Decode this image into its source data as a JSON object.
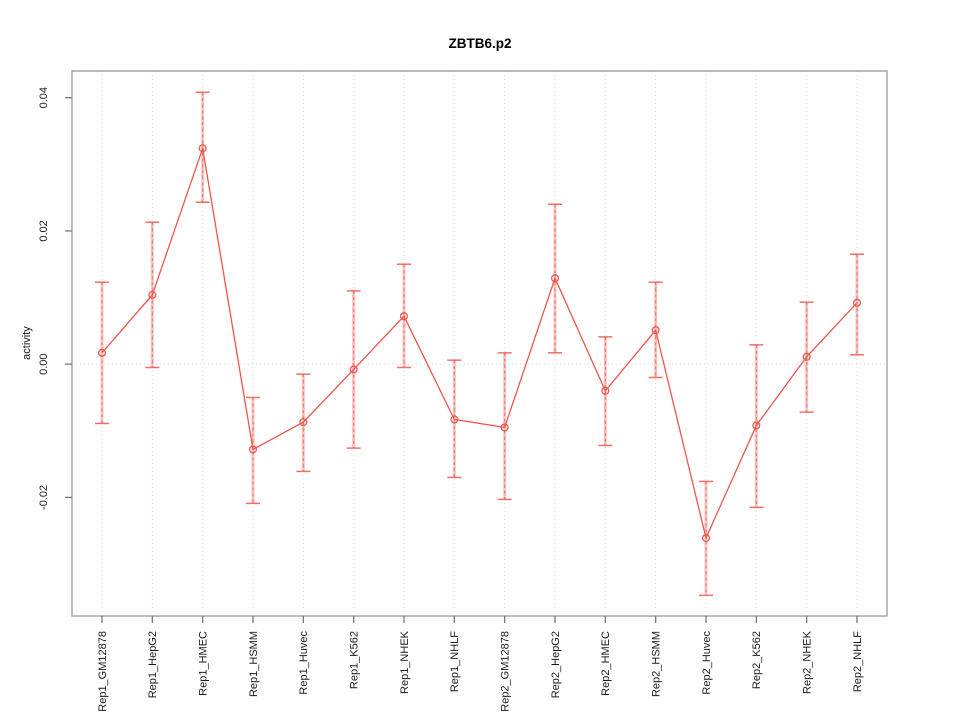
{
  "chart_data": {
    "type": "line",
    "title": "ZBTB6.p2",
    "ylabel": "activity",
    "xlabel": "",
    "categories": [
      "Rep1_GM12878",
      "Rep1_HepG2",
      "Rep1_HMEC",
      "Rep1_HSMM",
      "Rep1_Huvec",
      "Rep1_K562",
      "Rep1_NHEK",
      "Rep1_NHLF",
      "Rep2_GM12878",
      "Rep2_HepG2",
      "Rep2_HMEC",
      "Rep2_HSMM",
      "Rep2_Huvec",
      "Rep2_K562",
      "Rep2_NHEK",
      "Rep2_NHLF"
    ],
    "series": [
      {
        "name": "activity",
        "values": [
          0.0017,
          0.0104,
          0.0324,
          -0.0128,
          -0.0087,
          -0.0008,
          0.0072,
          -0.0083,
          -0.0095,
          0.0129,
          -0.004,
          0.0051,
          -0.0261,
          -0.0092,
          0.0011,
          0.0092
        ],
        "error_upper": [
          0.0123,
          0.0213,
          0.0408,
          -0.005,
          -0.0015,
          0.011,
          0.015,
          0.0006,
          0.0017,
          0.024,
          0.0041,
          0.0123,
          -0.0176,
          0.0029,
          0.0093,
          0.0165
        ],
        "error_lower": [
          -0.0089,
          -0.0005,
          0.0243,
          -0.0209,
          -0.0161,
          -0.0126,
          -0.0005,
          -0.017,
          -0.0203,
          0.0017,
          -0.0122,
          -0.002,
          -0.0347,
          -0.0215,
          -0.0072,
          0.0014
        ]
      }
    ],
    "yticks": [
      {
        "value": -0.02,
        "label": "-0.02"
      },
      {
        "value": 0.0,
        "label": "0.00"
      },
      {
        "value": 0.02,
        "label": "0.02"
      },
      {
        "value": 0.04,
        "label": "0.04"
      }
    ],
    "ylim": [
      -0.0378,
      0.044
    ],
    "grid": {
      "vertical_per_category": true,
      "horizontal_at_zero": true,
      "style": "dotted"
    },
    "legend": "none",
    "marker": "open-circle",
    "colors": {
      "series": "#ee564e",
      "error_bar_soft": "rgba(238,86,78,0.35)",
      "frame": "#999999",
      "tick": "#777777",
      "grid": "#d9d9d9",
      "label": "#1a1a1a",
      "background": "#ffffff"
    }
  }
}
